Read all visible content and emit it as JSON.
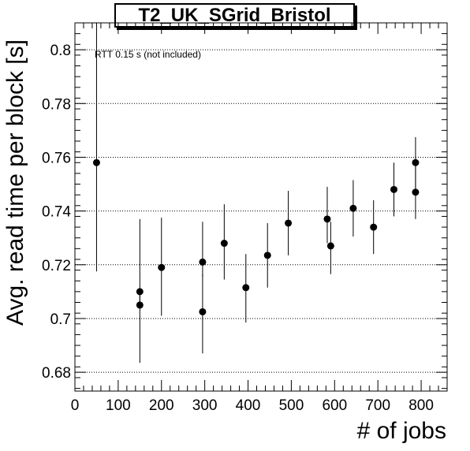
{
  "chart_data": {
    "type": "scatter",
    "title": "T2_UK_SGrid_Bristol",
    "xlabel": "# of jobs",
    "ylabel": "Avg. read time per block [s]",
    "annotation": "RTT 0.15 s (not included)",
    "xlim": [
      0,
      860
    ],
    "ylim": [
      0.673,
      0.81
    ],
    "x_ticks": [
      0,
      100,
      200,
      300,
      400,
      500,
      600,
      700,
      800
    ],
    "y_ticks": [
      0.68,
      0.7,
      0.72,
      0.74,
      0.76,
      0.78,
      0.8
    ],
    "y_tick_labels": [
      "0.68",
      "0.7",
      "0.72",
      "0.74",
      "0.76",
      "0.78",
      "0.8"
    ],
    "grid": "horizontal dotted",
    "series": [
      {
        "points": [
          {
            "x": 50,
            "y": 0.758,
            "ylo": 0.7175,
            "yhi": 0.81
          },
          {
            "x": 150,
            "y": 0.71,
            "ylo": 0.7055,
            "yhi": 0.737
          },
          {
            "x": 150,
            "y": 0.705,
            "ylo": 0.6835,
            "yhi": 0.7095
          },
          {
            "x": 200,
            "y": 0.719,
            "ylo": 0.701,
            "yhi": 0.7375
          },
          {
            "x": 295,
            "y": 0.721,
            "ylo": 0.7155,
            "yhi": 0.736
          },
          {
            "x": 295,
            "y": 0.7025,
            "ylo": 0.687,
            "yhi": 0.7165
          },
          {
            "x": 345,
            "y": 0.728,
            "ylo": 0.7145,
            "yhi": 0.7425
          },
          {
            "x": 395,
            "y": 0.7115,
            "ylo": 0.6985,
            "yhi": 0.724
          },
          {
            "x": 445,
            "y": 0.7235,
            "ylo": 0.7115,
            "yhi": 0.7355
          },
          {
            "x": 493,
            "y": 0.7355,
            "ylo": 0.7235,
            "yhi": 0.7475
          },
          {
            "x": 583,
            "y": 0.737,
            "ylo": 0.728,
            "yhi": 0.749
          },
          {
            "x": 591,
            "y": 0.727,
            "ylo": 0.7165,
            "yhi": 0.736
          },
          {
            "x": 643,
            "y": 0.741,
            "ylo": 0.7305,
            "yhi": 0.7515
          },
          {
            "x": 690,
            "y": 0.734,
            "ylo": 0.724,
            "yhi": 0.744
          },
          {
            "x": 737,
            "y": 0.748,
            "ylo": 0.738,
            "yhi": 0.758
          },
          {
            "x": 787,
            "y": 0.758,
            "ylo": 0.7485,
            "yhi": 0.7675
          },
          {
            "x": 787,
            "y": 0.747,
            "ylo": 0.737,
            "yhi": 0.7565
          }
        ]
      }
    ]
  }
}
